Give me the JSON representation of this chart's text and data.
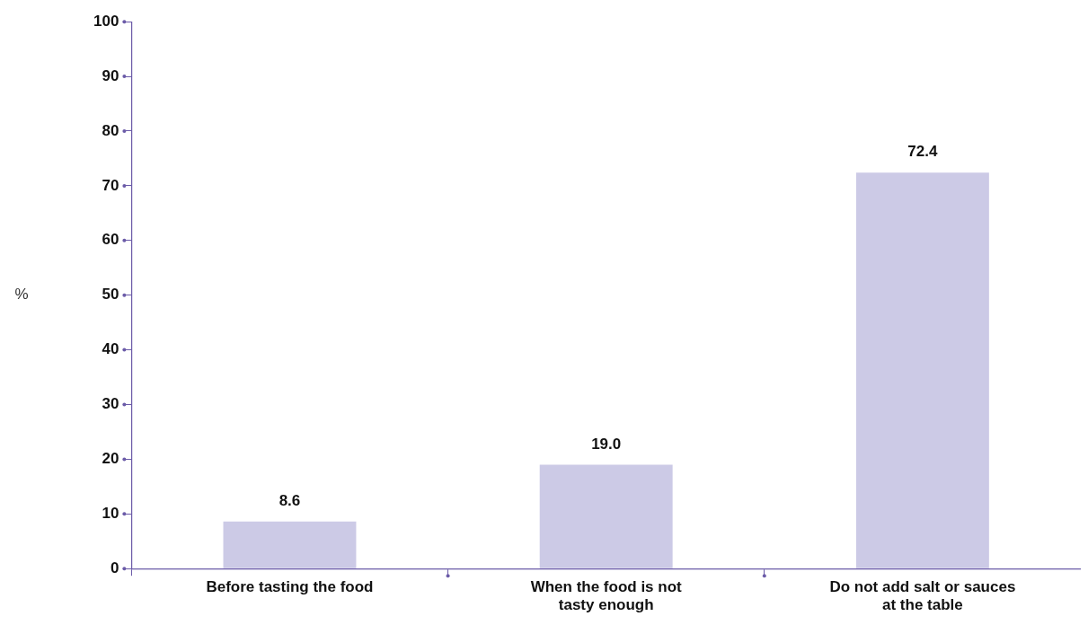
{
  "chart_data": {
    "type": "bar",
    "ylabel": "%",
    "categories": [
      "Before tasting the food",
      "When the food is not tasty enough",
      "Do not add salt or sauces at the table"
    ],
    "values": [
      8.6,
      19.0,
      72.4
    ],
    "color": "#cccae6",
    "value_labels": [
      "8.6",
      "19.0",
      "72.4"
    ],
    "ylim": [
      0,
      100
    ],
    "yticks": [
      0,
      10,
      20,
      30,
      40,
      50,
      60,
      70,
      80,
      90,
      100
    ],
    "grid": false,
    "legend": false
  }
}
